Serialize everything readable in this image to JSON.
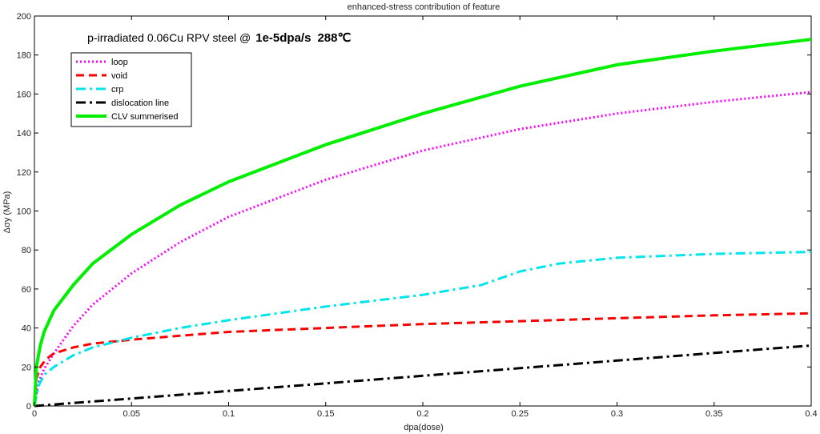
{
  "chart_data": {
    "type": "line",
    "title": "enhanced-stress contribution of feature",
    "annotation": {
      "prefix": "p",
      "text1": "-irradiated 0.06Cu RPV steel @",
      "rate": "1e-5dpa/s",
      "temperature": "288℃"
    },
    "xlabel": "dpa(dose)",
    "ylabel": "Δσy (MPa)",
    "xlim": [
      0,
      0.4
    ],
    "ylim": [
      0,
      200
    ],
    "xticks": [
      0,
      0.05,
      0.1,
      0.15,
      0.2,
      0.25,
      0.3,
      0.35,
      0.4
    ],
    "xtick_labels": [
      "0",
      "0.05",
      "0.1",
      "0.15",
      "0.2",
      "0.25",
      "0.3",
      "0.35",
      "0.4"
    ],
    "yticks": [
      0,
      20,
      40,
      60,
      80,
      100,
      120,
      140,
      160,
      180,
      200
    ],
    "ytick_labels": [
      "0",
      "20",
      "40",
      "60",
      "80",
      "100",
      "120",
      "140",
      "160",
      "180",
      "200"
    ],
    "grid": false,
    "legend_position": "top-left",
    "series": [
      {
        "name": "loop",
        "color": "#ff00ff",
        "style": "dotted",
        "x": [
          0,
          0.002,
          0.005,
          0.01,
          0.02,
          0.03,
          0.05,
          0.075,
          0.1,
          0.15,
          0.2,
          0.25,
          0.3,
          0.35,
          0.4
        ],
        "y": [
          0,
          12,
          19,
          27,
          41,
          52,
          68,
          84,
          97,
          116,
          131,
          142,
          150,
          156,
          161
        ]
      },
      {
        "name": "void",
        "color": "#ff0000",
        "style": "dashed",
        "x": [
          0,
          0.001,
          0.003,
          0.006,
          0.01,
          0.02,
          0.03,
          0.05,
          0.075,
          0.1,
          0.15,
          0.2,
          0.25,
          0.3,
          0.35,
          0.4
        ],
        "y": [
          0,
          14,
          20,
          24,
          27,
          30,
          32,
          34,
          36,
          38,
          40,
          42,
          43.5,
          45,
          46.5,
          47.5
        ]
      },
      {
        "name": "crp",
        "color": "#00e5ee",
        "style": "dashdot",
        "x": [
          0,
          0.002,
          0.005,
          0.01,
          0.02,
          0.03,
          0.05,
          0.075,
          0.1,
          0.15,
          0.2,
          0.23,
          0.25,
          0.27,
          0.3,
          0.35,
          0.4
        ],
        "y": [
          0,
          10,
          16,
          20,
          26,
          30,
          35,
          40,
          44,
          51,
          57,
          62,
          69,
          73,
          76,
          78,
          79
        ]
      },
      {
        "name": "dislocation line",
        "color": "#000000",
        "style": "dashdot",
        "x": [
          0,
          0.05,
          0.1,
          0.15,
          0.2,
          0.25,
          0.3,
          0.35,
          0.4
        ],
        "y": [
          0,
          3.8,
          7.7,
          11.6,
          15.5,
          19.4,
          23.3,
          27.2,
          31
        ]
      },
      {
        "name": "CLV summerised",
        "color": "#00ee00",
        "style": "solid",
        "x": [
          0,
          0.001,
          0.003,
          0.005,
          0.01,
          0.02,
          0.03,
          0.05,
          0.075,
          0.1,
          0.15,
          0.2,
          0.25,
          0.3,
          0.35,
          0.4
        ],
        "y": [
          0,
          20,
          31,
          38,
          49,
          62,
          73,
          88,
          103,
          115,
          134,
          150,
          164,
          175,
          182,
          188
        ]
      }
    ]
  }
}
